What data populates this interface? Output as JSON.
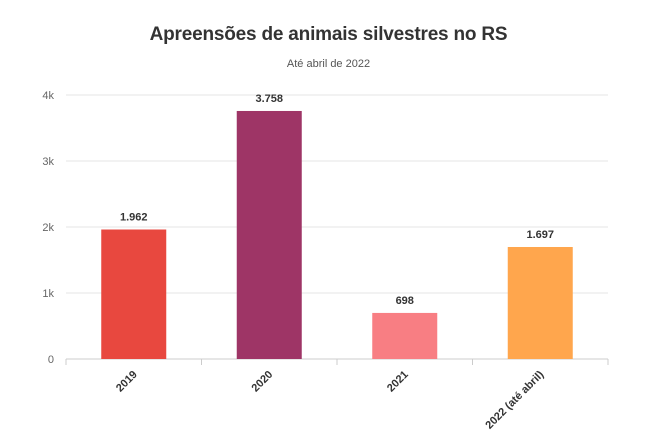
{
  "chart_data": {
    "type": "bar",
    "title": "Apreensões de animais silvestres no RS",
    "subtitle": "Até abril de 2022",
    "categories": [
      "2019",
      "2020",
      "2021",
      "2022 (até abril)"
    ],
    "values": [
      1962,
      3758,
      698,
      1697
    ],
    "value_labels": [
      "1.962",
      "3.758",
      "698",
      "1.697"
    ],
    "colors": [
      "#e8483f",
      "#9e3566",
      "#f87e83",
      "#ffa64d"
    ],
    "ylim": [
      0,
      4000
    ],
    "yticks": [
      0,
      1000,
      2000,
      3000,
      4000
    ],
    "ytick_labels": [
      "0",
      "1k",
      "2k",
      "3k",
      "4k"
    ],
    "xlabel": "",
    "ylabel": "",
    "grid": true,
    "legend": "none"
  }
}
